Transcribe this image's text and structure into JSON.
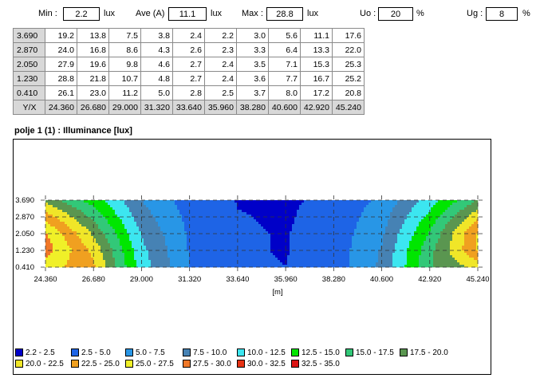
{
  "stats": {
    "min_label": "Min :",
    "min_value": "2.2",
    "min_unit": "lux",
    "ave_label": "Ave (A)",
    "ave_value": "11.1",
    "ave_unit": "lux",
    "max_label": "Max :",
    "max_value": "28.8",
    "max_unit": "lux",
    "uo_label": "Uo :",
    "uo_value": "20",
    "uo_unit": "%",
    "ug_label": "Ug :",
    "ug_value": "8",
    "ug_unit": "%"
  },
  "table": {
    "rows": [
      {
        "y": "3.690",
        "values": [
          "19.2",
          "13.8",
          "7.5",
          "3.8",
          "2.4",
          "2.2",
          "3.0",
          "5.6",
          "11.1",
          "17.6"
        ]
      },
      {
        "y": "2.870",
        "values": [
          "24.0",
          "16.8",
          "8.6",
          "4.3",
          "2.6",
          "2.3",
          "3.3",
          "6.4",
          "13.3",
          "22.0"
        ]
      },
      {
        "y": "2.050",
        "values": [
          "27.9",
          "19.6",
          "9.8",
          "4.6",
          "2.7",
          "2.4",
          "3.5",
          "7.1",
          "15.3",
          "25.3"
        ]
      },
      {
        "y": "1.230",
        "values": [
          "28.8",
          "21.8",
          "10.7",
          "4.8",
          "2.7",
          "2.4",
          "3.6",
          "7.7",
          "16.7",
          "25.2"
        ]
      },
      {
        "y": "0.410",
        "values": [
          "26.1",
          "23.0",
          "11.2",
          "5.0",
          "2.8",
          "2.5",
          "3.7",
          "8.0",
          "17.2",
          "20.8"
        ]
      }
    ],
    "corner": "Y/X",
    "x_headers": [
      "24.360",
      "26.680",
      "29.000",
      "31.320",
      "33.640",
      "35.960",
      "38.280",
      "40.600",
      "42.920",
      "45.240"
    ]
  },
  "chart_title": "polje 1 (1) : Illuminance [lux]",
  "chart_data": {
    "type": "heatmap",
    "title": "polje 1 (1) : Illuminance [lux]",
    "xlabel": "[m]",
    "ylabel": "",
    "x": [
      24.36,
      26.68,
      29.0,
      31.32,
      33.64,
      35.96,
      38.28,
      40.6,
      42.92,
      45.24
    ],
    "y": [
      3.69,
      2.87,
      2.05,
      1.23,
      0.41
    ],
    "x_tick_labels": [
      "24.360",
      "26.680",
      "29.000",
      "31.320",
      "33.640",
      "35.960",
      "38.280",
      "40.600",
      "42.920",
      "45.240"
    ],
    "y_tick_labels": [
      "3.690",
      "2.870",
      "2.050",
      "1.230",
      "0.410"
    ],
    "xlim": [
      24.36,
      45.24
    ],
    "ylim": [
      0.41,
      3.69
    ],
    "grid": true,
    "values": [
      [
        19.2,
        13.8,
        7.5,
        3.8,
        2.4,
        2.2,
        3.0,
        5.6,
        11.1,
        17.6
      ],
      [
        24.0,
        16.8,
        8.6,
        4.3,
        2.6,
        2.3,
        3.3,
        6.4,
        13.3,
        22.0
      ],
      [
        27.9,
        19.6,
        9.8,
        4.6,
        2.7,
        2.4,
        3.5,
        7.1,
        15.3,
        25.3
      ],
      [
        28.8,
        21.8,
        10.7,
        4.8,
        2.7,
        2.4,
        3.6,
        7.7,
        16.7,
        25.2
      ],
      [
        26.1,
        23.0,
        11.2,
        5.0,
        2.8,
        2.5,
        3.7,
        8.0,
        17.2,
        20.8
      ]
    ],
    "legend": [
      {
        "label": "2.2 - 2.5",
        "min": 2.2,
        "max": 2.5,
        "color": "#0000c8"
      },
      {
        "label": "2.5 - 5.0",
        "min": 2.5,
        "max": 5.0,
        "color": "#1e64e6"
      },
      {
        "label": "5.0 - 7.5",
        "min": 5.0,
        "max": 7.5,
        "color": "#2896e6"
      },
      {
        "label": "7.5 - 10.0",
        "min": 7.5,
        "max": 10.0,
        "color": "#4682b4"
      },
      {
        "label": "10.0 - 12.5",
        "min": 10.0,
        "max": 12.5,
        "color": "#3ce6f0"
      },
      {
        "label": "12.5 - 15.0",
        "min": 12.5,
        "max": 15.0,
        "color": "#00e600"
      },
      {
        "label": "15.0 - 17.5",
        "min": 15.0,
        "max": 17.5,
        "color": "#32c878"
      },
      {
        "label": "17.5 - 20.0",
        "min": 17.5,
        "max": 20.0,
        "color": "#5a9650"
      },
      {
        "label": "20.0 - 22.5",
        "min": 20.0,
        "max": 22.5,
        "color": "#f0e628"
      },
      {
        "label": "22.5 - 25.0",
        "min": 22.5,
        "max": 25.0,
        "color": "#f0a020"
      },
      {
        "label": "25.0 - 27.5",
        "min": 25.0,
        "max": 27.5,
        "color": "#f0f028"
      },
      {
        "label": "27.5 - 30.0",
        "min": 27.5,
        "max": 30.0,
        "color": "#f07828"
      },
      {
        "label": "30.0 - 32.5",
        "min": 30.0,
        "max": 32.5,
        "color": "#e63214"
      },
      {
        "label": "32.5 - 35.0",
        "min": 32.5,
        "max": 35.0,
        "color": "#dc1414"
      }
    ]
  }
}
